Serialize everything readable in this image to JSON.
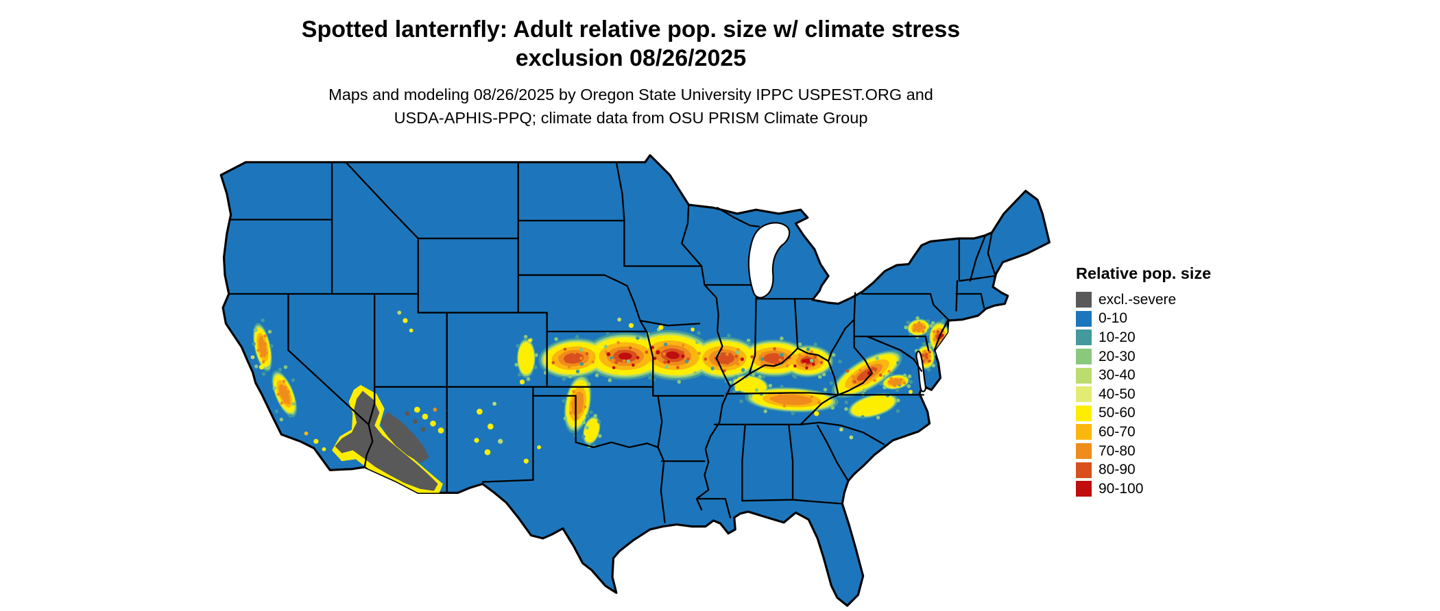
{
  "title": {
    "line1": "Spotted lanternfly: Adult relative pop. size w/ climate stress",
    "line2": "exclusion 08/26/2025"
  },
  "subtitle": {
    "line1": "Maps and modeling 08/26/2025 by Oregon State University IPPC USPEST.ORG and",
    "line2": "USDA-APHIS-PPQ; climate data from OSU PRISM Climate Group"
  },
  "legend": {
    "title": "Relative pop. size",
    "items": [
      {
        "label": "excl.-severe",
        "color": "#595959"
      },
      {
        "label": "0-10",
        "color": "#1D76BB"
      },
      {
        "label": "10-20",
        "color": "#44999C"
      },
      {
        "label": "20-30",
        "color": "#8AC87E"
      },
      {
        "label": "30-40",
        "color": "#BBDC6E"
      },
      {
        "label": "40-50",
        "color": "#E3EC72"
      },
      {
        "label": "50-60",
        "color": "#FDEE00"
      },
      {
        "label": "60-70",
        "color": "#FBB60F"
      },
      {
        "label": "70-80",
        "color": "#EF8C1C"
      },
      {
        "label": "80-90",
        "color": "#D9501E"
      },
      {
        "label": "90-100",
        "color": "#C00D0D"
      }
    ]
  },
  "map": {
    "border_color": "#000000",
    "water_color": "#FFFFFF"
  }
}
